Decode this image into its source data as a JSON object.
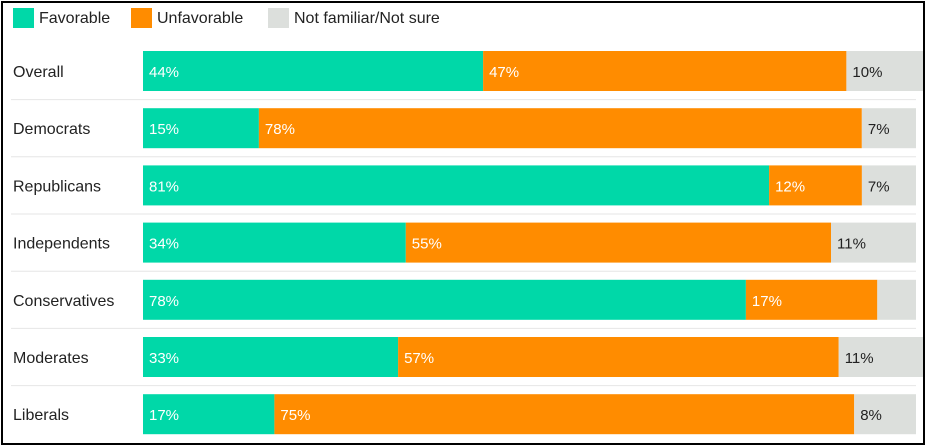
{
  "chart_data": {
    "type": "bar",
    "orientation": "horizontal",
    "stacked": true,
    "categories": [
      "Overall",
      "Democrats",
      "Republicans",
      "Independents",
      "Conservatives",
      "Moderates",
      "Liberals"
    ],
    "series": [
      {
        "name": "Favorable",
        "color": "#00d8a8",
        "values": [
          44,
          15,
          81,
          34,
          78,
          33,
          17
        ],
        "labels": [
          "44%",
          "15%",
          "81%",
          "34%",
          "78%",
          "33%",
          "17%"
        ]
      },
      {
        "name": "Unfavorable",
        "color": "#ff8c00",
        "values": [
          47,
          78,
          12,
          55,
          17,
          57,
          75
        ],
        "labels": [
          "47%",
          "78%",
          "12%",
          "55%",
          "17%",
          "57%",
          "75%"
        ]
      },
      {
        "name": "Not familiar/Not sure",
        "color": "#dcdfdc",
        "values": [
          10,
          7,
          7,
          11,
          5,
          11,
          8
        ],
        "labels": [
          "10%",
          "7%",
          "7%",
          "11%",
          "",
          "11%",
          "8%"
        ]
      }
    ],
    "legend": {
      "placement": "top-left"
    },
    "xlim": [
      0,
      100
    ],
    "grid": false
  }
}
